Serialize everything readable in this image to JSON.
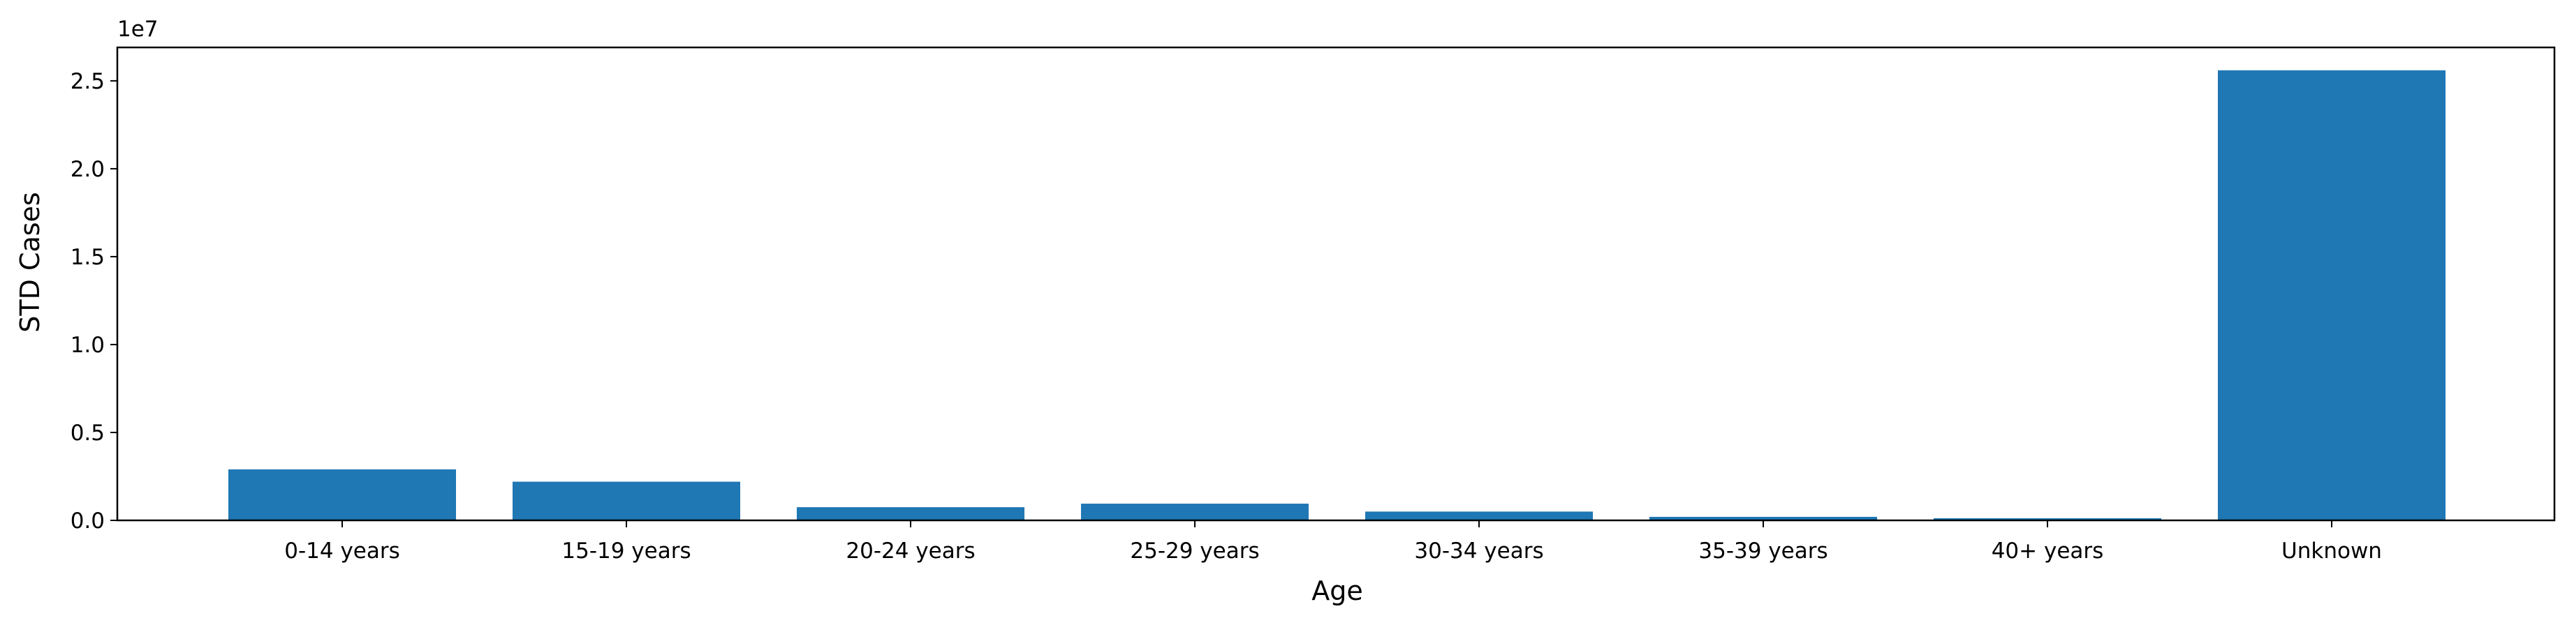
{
  "chart_data": {
    "type": "bar",
    "title": "",
    "xlabel": "Age",
    "ylabel": "STD Cases",
    "y_offset_text": "1e7",
    "categories": [
      "0-14 years",
      "15-19 years",
      "20-24 years",
      "25-29 years",
      "30-34 years",
      "35-39 years",
      "40+ years",
      "Unknown"
    ],
    "values": [
      2900000,
      2200000,
      750000,
      950000,
      500000,
      200000,
      120000,
      25600000
    ],
    "ylim": [
      0,
      26900000
    ],
    "y_ticks": [
      0,
      5000000,
      10000000,
      15000000,
      20000000,
      25000000
    ],
    "y_tick_labels": [
      "0.0",
      "0.5",
      "1.0",
      "1.5",
      "2.0",
      "2.5"
    ],
    "bar_color": "#1f77b4",
    "grid": false,
    "legend": "none"
  }
}
